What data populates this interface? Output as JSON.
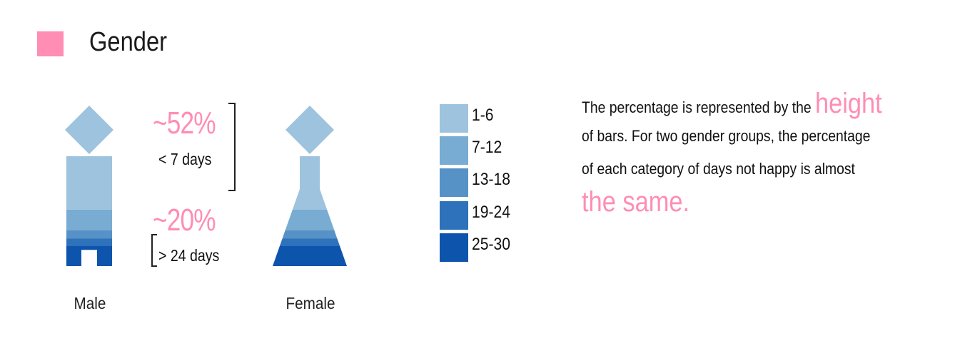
{
  "header": {
    "title": "Gender",
    "swatch_color": "#ff8db4"
  },
  "chart_data": {
    "type": "bar",
    "title": "Gender",
    "categories": [
      "1-6",
      "7-12",
      "13-18",
      "19-24",
      "25-30"
    ],
    "colors": [
      "#9dc3de",
      "#78acd2",
      "#5692c6",
      "#2e72bb",
      "#0d54ad"
    ],
    "groups": [
      {
        "name": "Male",
        "shape": "male-figure",
        "values": [
          52,
          20,
          8,
          7,
          20
        ]
      },
      {
        "name": "Female",
        "shape": "female-figure",
        "values": [
          52,
          20,
          8,
          7,
          20
        ]
      }
    ],
    "annotations": {
      "top_pct": "~52%",
      "top_days": "< 7 days",
      "bottom_pct": "~20%",
      "bottom_days": "> 24 days"
    },
    "legend": {
      "placement": "right"
    }
  },
  "note": {
    "line1_pre": "The percentage is represented by the ",
    "line1_highlight": "height",
    "line2": "of bars. For two gender groups, the percentage",
    "line3": "of each category of days not happy is almost",
    "line4_highlight": "the same."
  }
}
